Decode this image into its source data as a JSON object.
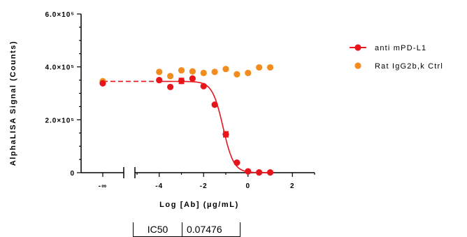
{
  "colors": {
    "anti_mpdl1": "#e8141c",
    "rat_igg2b": "#f28c1e",
    "axis": "#000000"
  },
  "chart_data": {
    "type": "scatter",
    "title": "",
    "xlabel": "Log [Ab] (µg/mL)",
    "ylabel": "AlphaLISA Signal (Counts)",
    "ylim": [
      0,
      600000
    ],
    "xlim_main": [
      -5,
      3
    ],
    "broken_x_axis": true,
    "x_ticks": [
      {
        "value": "-inf",
        "label": "-∞"
      },
      {
        "value": -4,
        "label": "-4"
      },
      {
        "value": -2,
        "label": "-2"
      },
      {
        "value": 0,
        "label": "0"
      },
      {
        "value": 2,
        "label": "2"
      }
    ],
    "y_ticks": [
      {
        "value": 0,
        "label": "0"
      },
      {
        "value": 200000,
        "label": "2.0×10⁵"
      },
      {
        "value": 400000,
        "label": "4.0×10⁵"
      },
      {
        "value": 600000,
        "label": "6.0×10⁵"
      }
    ],
    "legend_position": "right",
    "series": [
      {
        "name": "anti mPD-L1",
        "color": "#e8141c",
        "marker": "circle",
        "fit": "sigmoidal",
        "fit_params": {
          "top": 345000,
          "bottom": 0,
          "log_ic50": -1.126,
          "hill": -1.8
        },
        "zero_dose": {
          "x": "-inf",
          "y": 338000
        },
        "points": [
          {
            "x": -4.0,
            "y": 350000
          },
          {
            "x": -3.5,
            "y": 324000
          },
          {
            "x": -3.0,
            "y": 347000,
            "err": 10000
          },
          {
            "x": -2.5,
            "y": 356000
          },
          {
            "x": -2.0,
            "y": 327000
          },
          {
            "x": -1.5,
            "y": 257000
          },
          {
            "x": -1.0,
            "y": 145000,
            "err": 10000
          },
          {
            "x": -0.5,
            "y": 38000
          },
          {
            "x": 0.0,
            "y": 5000
          },
          {
            "x": 0.5,
            "y": 1000
          },
          {
            "x": 1.0,
            "y": 1000
          }
        ]
      },
      {
        "name": "Rat IgG2b,k Ctrl",
        "color": "#f28c1e",
        "marker": "circle",
        "zero_dose": {
          "x": "-inf",
          "y": 346000
        },
        "points": [
          {
            "x": -4.0,
            "y": 381000
          },
          {
            "x": -3.5,
            "y": 365000
          },
          {
            "x": -3.0,
            "y": 387000
          },
          {
            "x": -2.5,
            "y": 383000
          },
          {
            "x": -2.0,
            "y": 377000
          },
          {
            "x": -1.5,
            "y": 381000
          },
          {
            "x": -1.0,
            "y": 392000
          },
          {
            "x": -0.5,
            "y": 372000
          },
          {
            "x": 0.0,
            "y": 377000
          },
          {
            "x": 0.5,
            "y": 398000
          },
          {
            "x": 1.0,
            "y": 398000
          }
        ]
      }
    ]
  },
  "ic50_table": {
    "label": "IC50",
    "value": "0.07476"
  }
}
